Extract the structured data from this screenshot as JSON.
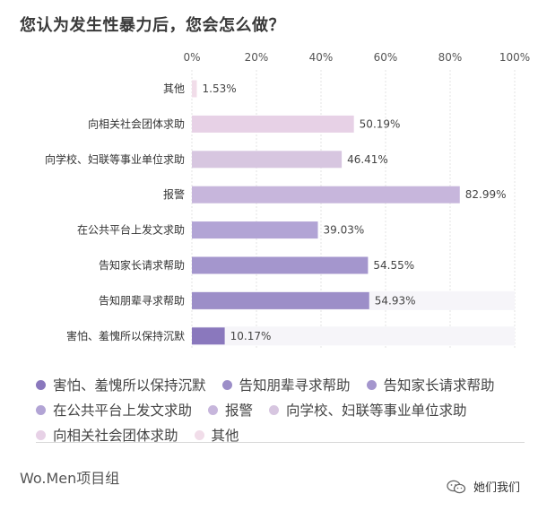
{
  "title": "您认为发生性暴力后，您会怎么做？",
  "chart_data": {
    "type": "bar",
    "orientation": "horizontal",
    "xlim": [
      0,
      100
    ],
    "ticks": [
      "0%",
      "20%",
      "40%",
      "60%",
      "80%",
      "100%"
    ],
    "categories": [
      "其他",
      "向相关社会团体求助",
      "向学校、妇联等事业单位求助",
      "报警",
      "在公共平台上发文求助",
      "告知家长请求帮助",
      "告知朋辈寻求帮助",
      "害怕、羞愧所以保持沉默"
    ],
    "values": [
      1.53,
      50.19,
      46.41,
      82.99,
      39.03,
      54.55,
      54.93,
      10.17
    ],
    "value_labels": [
      "1.53%",
      "50.19%",
      "46.41%",
      "82.99%",
      "39.03%",
      "54.55%",
      "54.93%",
      "10.17%"
    ],
    "colors": [
      "#f1dde9",
      "#e7d1e6",
      "#d7c6e0",
      "#c7b6dc",
      "#b2a4d5",
      "#a496cd",
      "#9c8ec8",
      "#8a78bd"
    ],
    "legend_position": "bottom",
    "legend": [
      {
        "label": "害怕、羞愧所以保持沉默",
        "color": "#8a78bd"
      },
      {
        "label": "告知朋辈寻求帮助",
        "color": "#9c8ec8"
      },
      {
        "label": "告知家长请求帮助",
        "color": "#a496cd"
      },
      {
        "label": "在公共平台上发文求助",
        "color": "#b2a4d5"
      },
      {
        "label": "报警",
        "color": "#c7b6dc"
      },
      {
        "label": "向学校、妇联等事业单位求助",
        "color": "#d7c6e0"
      },
      {
        "label": "向相关社会团体求助",
        "color": "#e7d1e6"
      },
      {
        "label": "其他",
        "color": "#f1dde9"
      }
    ]
  },
  "footer": {
    "brand": "Wo.Men项目组",
    "wechat_account": "她们我们",
    "wechat_icon": "wechat-icon"
  }
}
